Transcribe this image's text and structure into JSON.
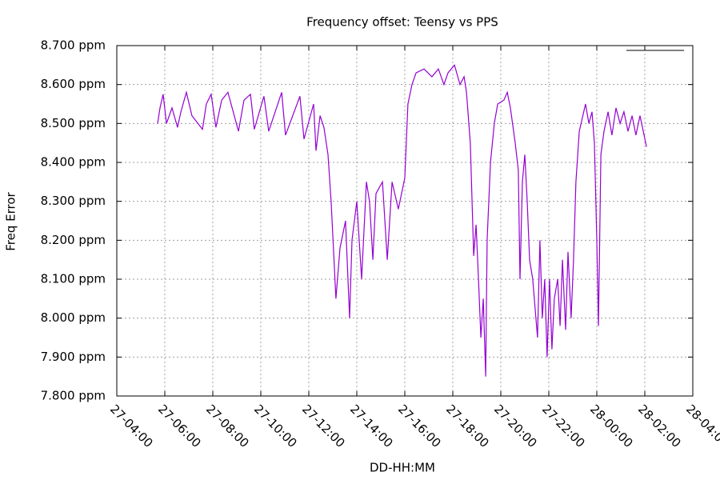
{
  "chart_data": {
    "type": "line",
    "title": "Frequency offset: Teensy vs PPS",
    "x_label": "DD-HH:MM",
    "y_label": "Freq Error",
    "color": "#9400d3",
    "grid": true,
    "xlim": [
      4,
      28
    ],
    "ylim": [
      7.8,
      8.7
    ],
    "xticks": [
      {
        "value": 4,
        "label": "27-04:00"
      },
      {
        "value": 6,
        "label": "27-06:00"
      },
      {
        "value": 8,
        "label": "27-08:00"
      },
      {
        "value": 10,
        "label": "27-10:00"
      },
      {
        "value": 12,
        "label": "27-12:00"
      },
      {
        "value": 14,
        "label": "27-14:00"
      },
      {
        "value": 16,
        "label": "27-16:00"
      },
      {
        "value": 18,
        "label": "27-18:00"
      },
      {
        "value": 20,
        "label": "27-20:00"
      },
      {
        "value": 22,
        "label": "27-22:00"
      },
      {
        "value": 24,
        "label": "28-00:00"
      },
      {
        "value": 26,
        "label": "28-02:00"
      },
      {
        "value": 28,
        "label": "28-04:00"
      }
    ],
    "yticks": [
      {
        "value": 7.8,
        "label": "7.800 ppm"
      },
      {
        "value": 7.9,
        "label": "7.900 ppm"
      },
      {
        "value": 8.0,
        "label": "8.000 ppm"
      },
      {
        "value": 8.1,
        "label": "8.100 ppm"
      },
      {
        "value": 8.2,
        "label": "8.200 ppm"
      },
      {
        "value": 8.3,
        "label": "8.300 ppm"
      },
      {
        "value": 8.4,
        "label": "8.400 ppm"
      },
      {
        "value": 8.5,
        "label": "8.500 ppm"
      },
      {
        "value": 8.6,
        "label": "8.600 ppm"
      },
      {
        "value": 8.7,
        "label": "8.700 ppm"
      }
    ],
    "x": [
      5.7,
      5.8,
      5.93,
      6.07,
      6.3,
      6.53,
      6.67,
      6.9,
      7.13,
      7.57,
      7.73,
      7.93,
      8.13,
      8.37,
      8.63,
      9.07,
      9.3,
      9.57,
      9.73,
      10.13,
      10.33,
      10.87,
      11.03,
      11.63,
      11.8,
      12.2,
      12.3,
      12.47,
      12.63,
      12.8,
      12.93,
      13.13,
      13.3,
      13.53,
      13.7,
      13.8,
      14.0,
      14.2,
      14.4,
      14.53,
      14.67,
      14.8,
      15.07,
      15.27,
      15.47,
      15.73,
      16.0,
      16.13,
      16.3,
      16.47,
      16.8,
      17.13,
      17.4,
      17.63,
      17.8,
      18.07,
      18.3,
      18.47,
      18.57,
      18.73,
      18.87,
      18.97,
      19.07,
      19.17,
      19.27,
      19.37,
      19.43,
      19.57,
      19.73,
      19.87,
      20.13,
      20.27,
      20.4,
      20.6,
      20.73,
      20.8,
      20.9,
      21.0,
      21.1,
      21.2,
      21.33,
      21.53,
      21.63,
      21.73,
      21.83,
      21.93,
      22.03,
      22.13,
      22.23,
      22.37,
      22.47,
      22.57,
      22.7,
      22.8,
      22.93,
      23.03,
      23.13,
      23.27,
      23.53,
      23.67,
      23.8,
      23.9,
      24.0,
      24.07,
      24.17,
      24.3,
      24.47,
      24.63,
      24.8,
      24.97,
      25.13,
      25.3,
      25.47,
      25.63,
      25.8,
      25.97,
      26.07
    ],
    "values": [
      8.5,
      8.54,
      8.575,
      8.5,
      8.54,
      8.49,
      8.53,
      8.58,
      8.52,
      8.485,
      8.55,
      8.575,
      8.49,
      8.56,
      8.58,
      8.48,
      8.56,
      8.575,
      8.485,
      8.57,
      8.48,
      8.58,
      8.47,
      8.57,
      8.46,
      8.55,
      8.43,
      8.52,
      8.49,
      8.42,
      8.3,
      8.05,
      8.18,
      8.25,
      8.0,
      8.2,
      8.3,
      8.1,
      8.35,
      8.3,
      8.15,
      8.32,
      8.35,
      8.15,
      8.35,
      8.28,
      8.36,
      8.55,
      8.6,
      8.63,
      8.64,
      8.62,
      8.64,
      8.6,
      8.63,
      8.65,
      8.6,
      8.62,
      8.58,
      8.45,
      8.16,
      8.24,
      8.1,
      7.95,
      8.05,
      7.85,
      8.2,
      8.4,
      8.5,
      8.55,
      8.56,
      8.58,
      8.54,
      8.45,
      8.38,
      8.1,
      8.35,
      8.42,
      8.3,
      8.15,
      8.1,
      7.95,
      8.2,
      8.0,
      8.1,
      7.9,
      8.1,
      7.92,
      8.05,
      8.1,
      7.98,
      8.15,
      7.97,
      8.17,
      8.0,
      8.15,
      8.35,
      8.48,
      8.55,
      8.5,
      8.53,
      8.45,
      8.2,
      7.98,
      8.42,
      8.48,
      8.53,
      8.47,
      8.54,
      8.5,
      8.53,
      8.48,
      8.52,
      8.47,
      8.52,
      8.47,
      8.44
    ]
  }
}
